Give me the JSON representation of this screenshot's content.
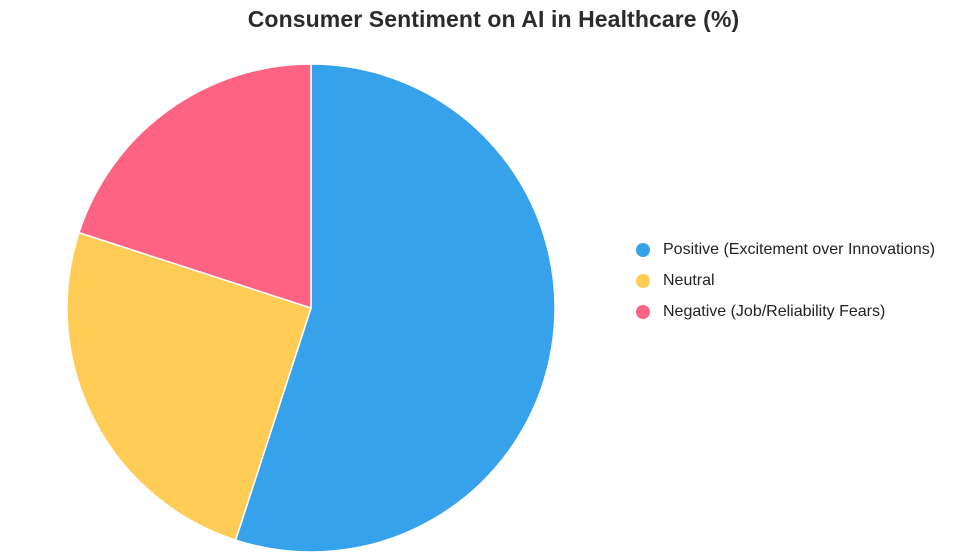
{
  "chart_data": {
    "type": "pie",
    "title": "Consumer Sentiment on AI in Healthcare (%)",
    "categories": [
      "Positive (Excitement over Innovations)",
      "Neutral",
      "Negative (Job/Reliability Fears)"
    ],
    "values": [
      55,
      25,
      20
    ],
    "colors": [
      "#36a2eb",
      "#ffcd56",
      "#ff6384"
    ],
    "legend_position": "right",
    "start_angle": "top, clockwise"
  },
  "title": "Consumer Sentiment on AI in Healthcare (%)",
  "legend": {
    "items": [
      {
        "label": "Positive (Excitement over Innovations)",
        "color": "#36a2eb"
      },
      {
        "label": "Neutral",
        "color": "#ffcd56"
      },
      {
        "label": "Negative (Job/Reliability Fears)",
        "color": "#ff6384"
      }
    ]
  }
}
